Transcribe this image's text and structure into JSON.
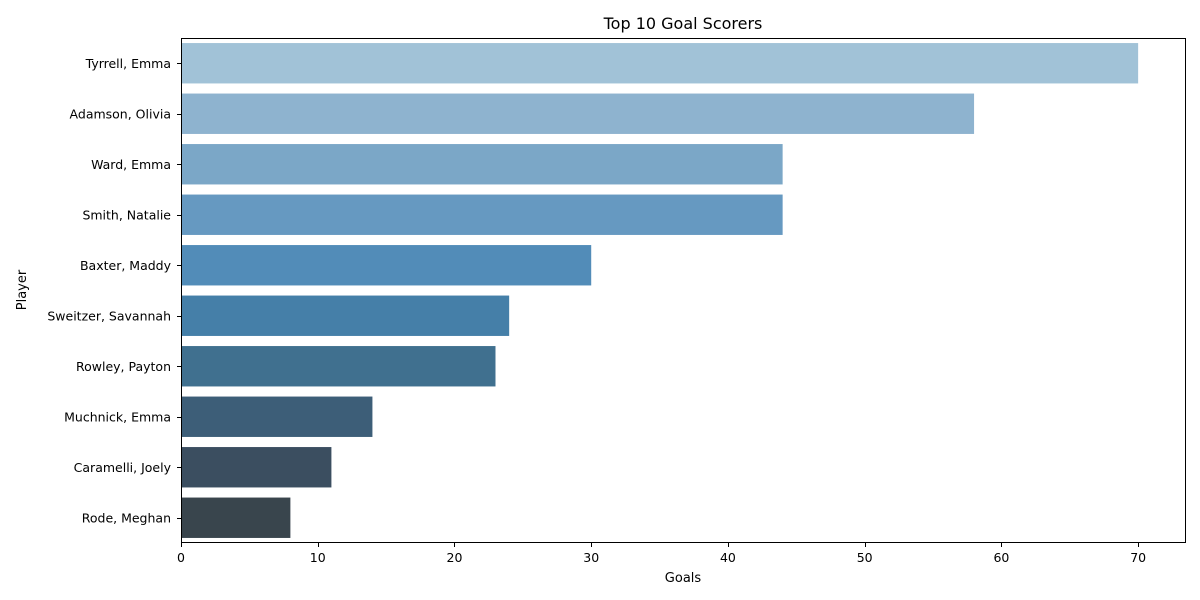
{
  "chart_data": {
    "type": "bar",
    "orientation": "horizontal",
    "title": "Top 10 Goal Scorers",
    "xlabel": "Goals",
    "ylabel": "Player",
    "categories": [
      "Tyrrell, Emma",
      "Adamson, Olivia",
      "Ward, Emma",
      "Smith, Natalie",
      "Baxter, Maddy",
      "Sweitzer, Savannah",
      "Rowley, Payton",
      "Muchnick, Emma",
      "Caramelli, Joely",
      "Rode, Meghan"
    ],
    "values": [
      70,
      58,
      44,
      44,
      30,
      24,
      23,
      14,
      11,
      8
    ],
    "colors": [
      "#a1c2d7",
      "#8eb3cf",
      "#7ba7c7",
      "#6699c1",
      "#528cb8",
      "#457fa8",
      "#40708f",
      "#3d5e78",
      "#3b4e60",
      "#39454d"
    ],
    "xlim": [
      0,
      73.5
    ],
    "xticks": [
      0,
      10,
      20,
      30,
      40,
      50,
      60,
      70
    ],
    "grid": false,
    "legend": "none"
  }
}
